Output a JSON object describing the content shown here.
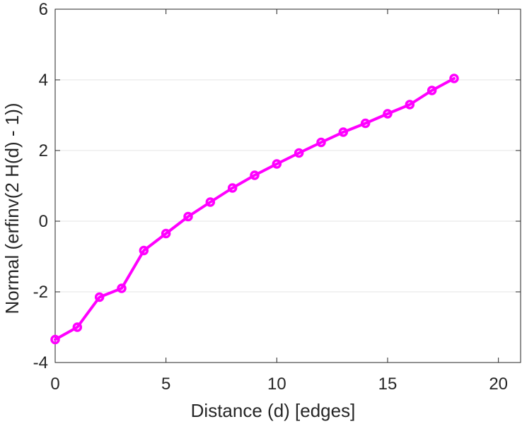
{
  "chart_data": {
    "type": "line",
    "title": "",
    "xlabel": "Distance (d) [edges]",
    "ylabel": "Normal (erfinv(2 H(d) - 1))",
    "xlim": [
      0,
      21
    ],
    "ylim": [
      -4,
      6
    ],
    "xticks": [
      0,
      5,
      10,
      15,
      20
    ],
    "yticks": [
      -4,
      -2,
      0,
      2,
      4,
      6
    ],
    "xtick_labels": [
      "0",
      "5",
      "10",
      "15",
      "20"
    ],
    "ytick_labels": [
      "-4",
      "-2",
      "0",
      "2",
      "4",
      "6"
    ],
    "grid": "horizontal",
    "legend": "none",
    "series": [
      {
        "color": "#ff00ff",
        "marker": "circle",
        "x": [
          0,
          1,
          2,
          3,
          4,
          5,
          6,
          7,
          8,
          9,
          10,
          11,
          12,
          13,
          14,
          15,
          16,
          17,
          18
        ],
        "y": [
          -3.35,
          -3.0,
          -2.15,
          -1.9,
          -0.83,
          -0.35,
          0.13,
          0.54,
          0.94,
          1.3,
          1.62,
          1.93,
          2.23,
          2.52,
          2.77,
          3.04,
          3.3,
          3.7,
          4.04
        ]
      }
    ]
  },
  "colors": {
    "axis": "#262626",
    "grid": "#e6e6e6",
    "series": "#ff00ff"
  }
}
